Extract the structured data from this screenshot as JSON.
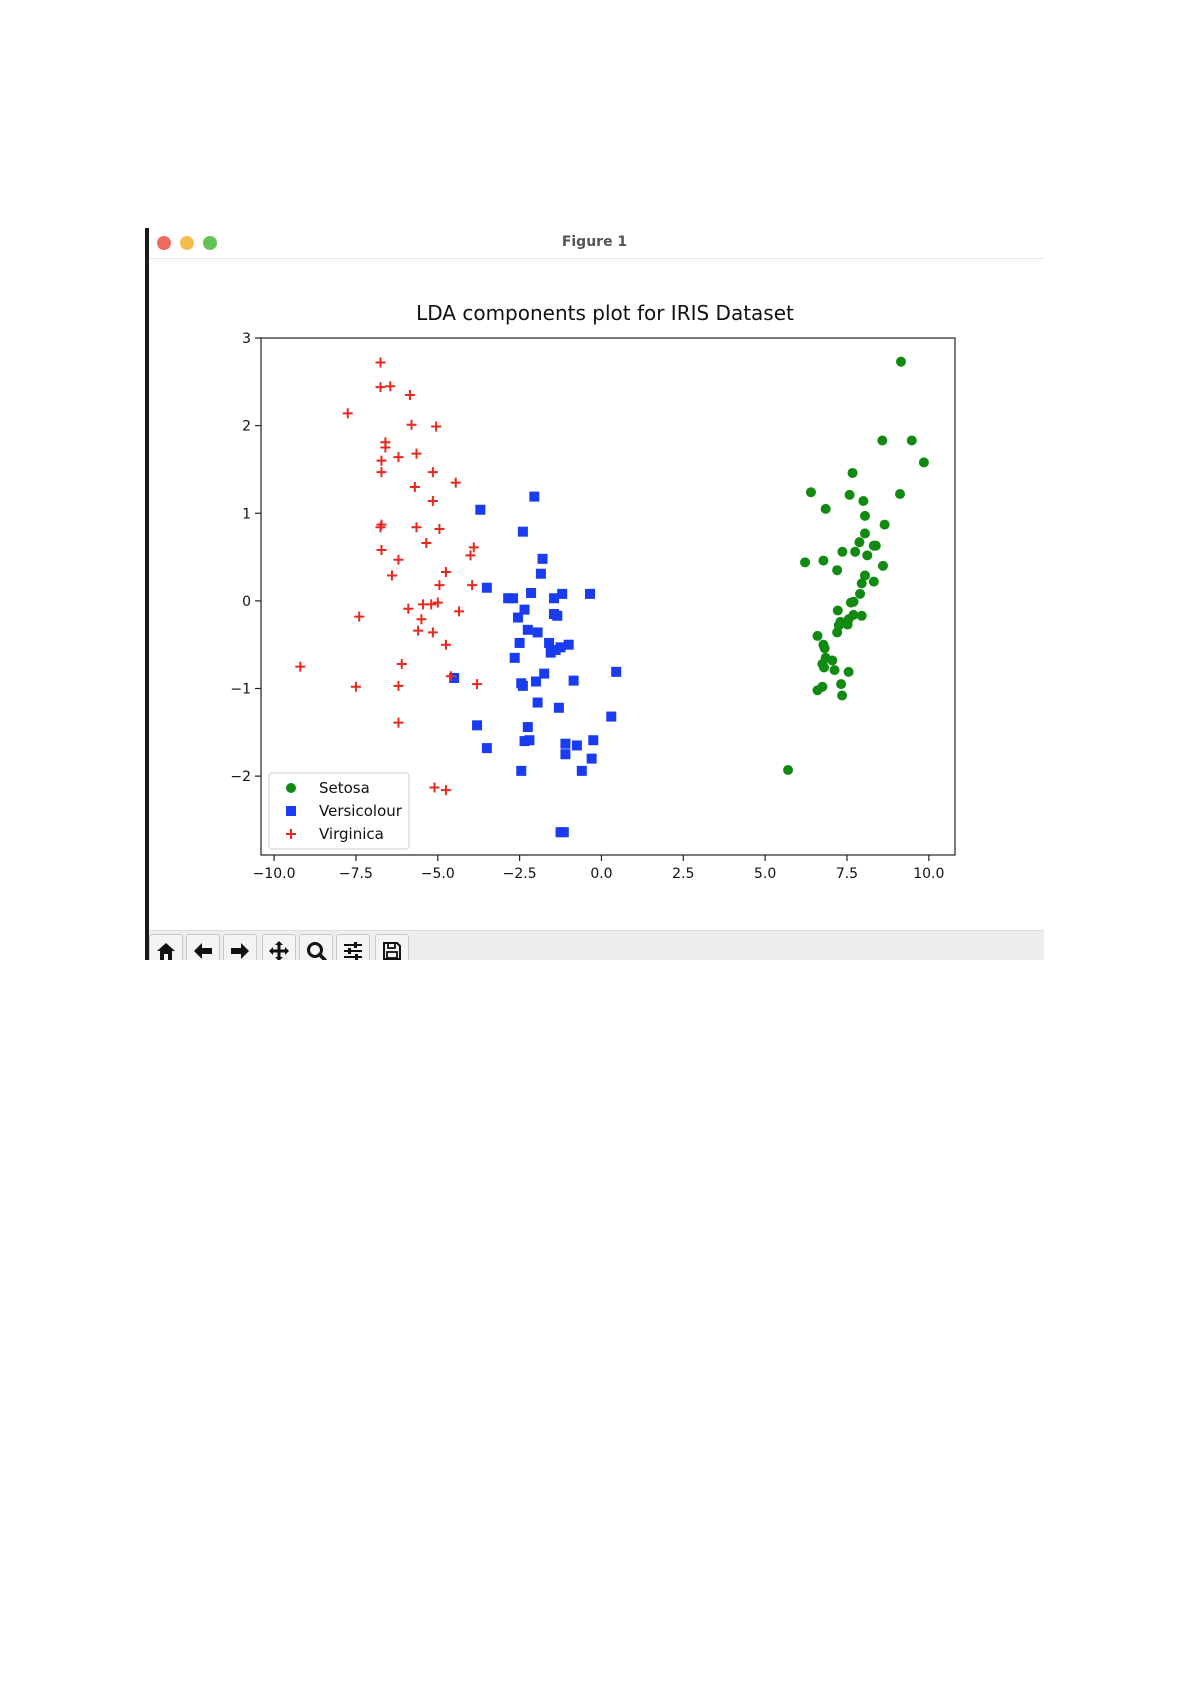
{
  "window": {
    "title": "Figure 1"
  },
  "toolbar": {
    "buttons": [
      {
        "name": "home-icon"
      },
      {
        "name": "back-icon"
      },
      {
        "name": "forward-icon"
      },
      {
        "name": "pan-icon"
      },
      {
        "name": "zoom-icon"
      },
      {
        "name": "configure-subplots-icon"
      },
      {
        "name": "save-icon"
      }
    ]
  },
  "chart_data": {
    "type": "scatter",
    "title": "LDA components plot for IRIS Dataset",
    "xlabel": "",
    "ylabel": "",
    "xlim": [
      -10.4,
      10.8
    ],
    "ylim": [
      -2.9,
      3.0
    ],
    "xticks": [
      "−10.0",
      "−7.5",
      "−5.0",
      "−2.5",
      "0.0",
      "2.5",
      "5.0",
      "7.5",
      "10.0"
    ],
    "yticks": [
      "−2",
      "−1",
      "0",
      "1",
      "2",
      "3"
    ],
    "grid": false,
    "legend_position": "lower-left",
    "series": [
      {
        "name": "Setosa",
        "marker": "circle",
        "color": "#118a11",
        "points": [
          [
            9.15,
            2.73
          ],
          [
            8.58,
            1.83
          ],
          [
            9.48,
            1.83
          ],
          [
            9.85,
            1.58
          ],
          [
            7.67,
            1.46
          ],
          [
            6.4,
            1.24
          ],
          [
            9.12,
            1.22
          ],
          [
            7.58,
            1.21
          ],
          [
            8.0,
            1.14
          ],
          [
            6.85,
            1.05
          ],
          [
            8.05,
            0.97
          ],
          [
            8.65,
            0.87
          ],
          [
            8.05,
            0.77
          ],
          [
            7.88,
            0.67
          ],
          [
            8.32,
            0.63
          ],
          [
            8.38,
            0.63
          ],
          [
            7.36,
            0.56
          ],
          [
            7.75,
            0.56
          ],
          [
            8.12,
            0.52
          ],
          [
            6.22,
            0.44
          ],
          [
            6.78,
            0.46
          ],
          [
            8.6,
            0.4
          ],
          [
            7.2,
            0.35
          ],
          [
            8.05,
            0.29
          ],
          [
            8.32,
            0.22
          ],
          [
            7.95,
            0.2
          ],
          [
            7.9,
            0.08
          ],
          [
            7.7,
            -0.01
          ],
          [
            7.62,
            -0.02
          ],
          [
            7.22,
            -0.11
          ],
          [
            7.7,
            -0.16
          ],
          [
            7.95,
            -0.17
          ],
          [
            7.55,
            -0.21
          ],
          [
            7.3,
            -0.24
          ],
          [
            7.52,
            -0.27
          ],
          [
            7.25,
            -0.28
          ],
          [
            7.2,
            -0.36
          ],
          [
            6.6,
            -0.4
          ],
          [
            6.78,
            -0.5
          ],
          [
            6.82,
            -0.54
          ],
          [
            6.85,
            -0.65
          ],
          [
            7.05,
            -0.68
          ],
          [
            6.75,
            -0.72
          ],
          [
            6.8,
            -0.76
          ],
          [
            7.12,
            -0.79
          ],
          [
            7.55,
            -0.81
          ],
          [
            7.32,
            -0.95
          ],
          [
            6.75,
            -0.98
          ],
          [
            6.6,
            -1.02
          ],
          [
            7.35,
            -1.08
          ],
          [
            5.7,
            -1.93
          ]
        ]
      },
      {
        "name": "Versicolour",
        "marker": "square",
        "color": "#1a3cf0",
        "points": [
          [
            -2.05,
            1.19
          ],
          [
            -3.7,
            1.04
          ],
          [
            -2.4,
            0.79
          ],
          [
            -1.8,
            0.48
          ],
          [
            -1.85,
            0.31
          ],
          [
            -3.5,
            0.15
          ],
          [
            -2.15,
            0.09
          ],
          [
            -1.2,
            0.08
          ],
          [
            -0.35,
            0.08
          ],
          [
            -2.85,
            0.03
          ],
          [
            -2.7,
            0.03
          ],
          [
            -1.45,
            0.03
          ],
          [
            -2.35,
            -0.1
          ],
          [
            -1.45,
            -0.15
          ],
          [
            -1.35,
            -0.17
          ],
          [
            -2.55,
            -0.19
          ],
          [
            -2.25,
            -0.33
          ],
          [
            -1.95,
            -0.36
          ],
          [
            -2.5,
            -0.48
          ],
          [
            -1.6,
            -0.48
          ],
          [
            -1.0,
            -0.5
          ],
          [
            -1.25,
            -0.53
          ],
          [
            -1.4,
            -0.56
          ],
          [
            -1.55,
            -0.59
          ],
          [
            -2.65,
            -0.65
          ],
          [
            0.45,
            -0.81
          ],
          [
            -1.75,
            -0.83
          ],
          [
            -4.5,
            -0.88
          ],
          [
            -0.85,
            -0.91
          ],
          [
            -2.0,
            -0.92
          ],
          [
            -2.45,
            -0.94
          ],
          [
            -2.4,
            -0.97
          ],
          [
            -1.95,
            -1.16
          ],
          [
            -1.3,
            -1.22
          ],
          [
            0.3,
            -1.32
          ],
          [
            -3.8,
            -1.42
          ],
          [
            -2.25,
            -1.44
          ],
          [
            -2.2,
            -1.59
          ],
          [
            -2.35,
            -1.6
          ],
          [
            -0.25,
            -1.59
          ],
          [
            -1.1,
            -1.63
          ],
          [
            -0.75,
            -1.65
          ],
          [
            -3.5,
            -1.68
          ],
          [
            -1.1,
            -1.75
          ],
          [
            -0.3,
            -1.8
          ],
          [
            -2.45,
            -1.94
          ],
          [
            -0.6,
            -1.94
          ],
          [
            -1.25,
            -2.64
          ],
          [
            -1.15,
            -2.64
          ]
        ]
      },
      {
        "name": "Virginica",
        "marker": "plus",
        "color": "#e8281e",
        "points": [
          [
            -6.75,
            2.72
          ],
          [
            -6.75,
            2.44
          ],
          [
            -6.45,
            2.45
          ],
          [
            -5.85,
            2.35
          ],
          [
            -7.75,
            2.14
          ],
          [
            -5.8,
            2.01
          ],
          [
            -5.05,
            1.99
          ],
          [
            -6.6,
            1.81
          ],
          [
            -6.6,
            1.75
          ],
          [
            -5.65,
            1.68
          ],
          [
            -6.2,
            1.64
          ],
          [
            -6.72,
            1.6
          ],
          [
            -6.72,
            1.47
          ],
          [
            -5.15,
            1.47
          ],
          [
            -4.45,
            1.35
          ],
          [
            -5.7,
            1.3
          ],
          [
            -5.15,
            1.14
          ],
          [
            -6.75,
            0.84
          ],
          [
            -6.72,
            0.87
          ],
          [
            -5.65,
            0.84
          ],
          [
            -4.95,
            0.82
          ],
          [
            -5.35,
            0.66
          ],
          [
            -3.9,
            0.61
          ],
          [
            -4.0,
            0.52
          ],
          [
            -6.72,
            0.58
          ],
          [
            -6.2,
            0.47
          ],
          [
            -4.75,
            0.33
          ],
          [
            -6.4,
            0.29
          ],
          [
            -4.95,
            0.18
          ],
          [
            -3.95,
            0.18
          ],
          [
            -5.0,
            -0.02
          ],
          [
            -5.2,
            -0.04
          ],
          [
            -5.45,
            -0.04
          ],
          [
            -5.9,
            -0.09
          ],
          [
            -4.35,
            -0.12
          ],
          [
            -7.4,
            -0.18
          ],
          [
            -5.5,
            -0.21
          ],
          [
            -5.6,
            -0.34
          ],
          [
            -5.15,
            -0.36
          ],
          [
            -4.75,
            -0.5
          ],
          [
            -6.1,
            -0.72
          ],
          [
            -9.2,
            -0.75
          ],
          [
            -4.6,
            -0.86
          ],
          [
            -3.8,
            -0.95
          ],
          [
            -7.5,
            -0.98
          ],
          [
            -6.2,
            -0.97
          ],
          [
            -6.2,
            -1.39
          ],
          [
            -5.1,
            -2.13
          ],
          [
            -4.75,
            -2.16
          ]
        ]
      }
    ]
  }
}
